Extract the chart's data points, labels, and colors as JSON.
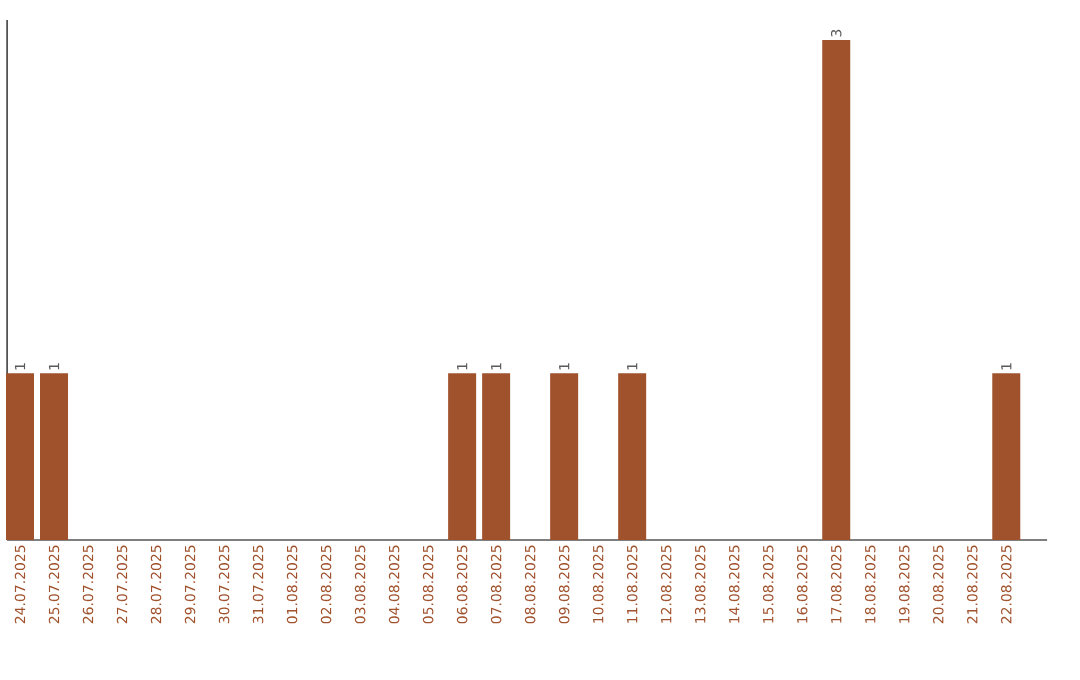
{
  "chart_data": {
    "type": "bar",
    "categories": [
      "24.07.2025",
      "25.07.2025",
      "26.07.2025",
      "27.07.2025",
      "28.07.2025",
      "29.07.2025",
      "30.07.2025",
      "31.07.2025",
      "01.08.2025",
      "02.08.2025",
      "03.08.2025",
      "04.08.2025",
      "05.08.2025",
      "06.08.2025",
      "07.08.2025",
      "08.08.2025",
      "09.08.2025",
      "10.08.2025",
      "11.08.2025",
      "12.08.2025",
      "13.08.2025",
      "14.08.2025",
      "15.08.2025",
      "16.08.2025",
      "17.08.2025",
      "18.08.2025",
      "19.08.2025",
      "20.08.2025",
      "21.08.2025",
      "22.08.2025"
    ],
    "values": [
      1,
      1,
      0,
      0,
      0,
      0,
      0,
      0,
      0,
      0,
      0,
      0,
      0,
      1,
      1,
      0,
      1,
      0,
      1,
      0,
      0,
      0,
      0,
      0,
      3,
      0,
      0,
      0,
      0,
      1
    ],
    "value_labels": [
      "1",
      "1",
      null,
      null,
      null,
      null,
      null,
      null,
      null,
      null,
      null,
      null,
      null,
      "1",
      "1",
      null,
      "1",
      null,
      "1",
      null,
      null,
      null,
      null,
      null,
      "3",
      null,
      null,
      null,
      null,
      "1"
    ],
    "color": "#a0522d"
  }
}
